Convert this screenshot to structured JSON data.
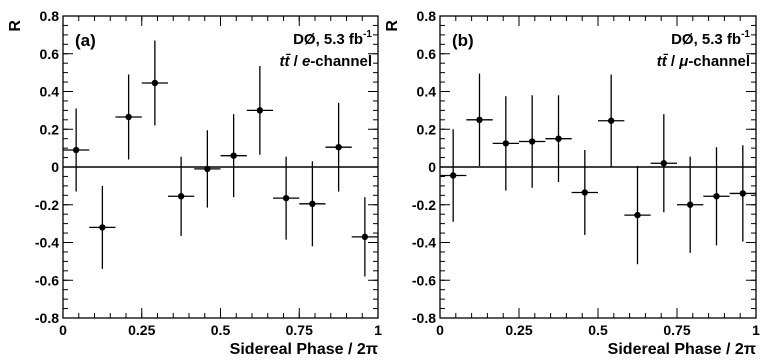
{
  "chart_data": [
    {
      "type": "scatter",
      "panel_label": "(a)",
      "annotation_line1": "DØ, 5.3 fb",
      "annotation_line1_sup": "-1",
      "annotation_process": "tt̄",
      "annotation_sep": " / ",
      "annotation_channel": "e",
      "annotation_channel_suffix": "-channel",
      "xlabel": "Sidereal Phase / 2π",
      "ylabel": "R",
      "xlim": [
        0,
        1
      ],
      "ylim": [
        -0.8,
        0.8
      ],
      "xticks": [
        "0",
        "0.25",
        "0.5",
        "0.75",
        "1"
      ],
      "yticks": [
        "-0.8",
        "-0.6",
        "-0.4",
        "-0.2",
        "0",
        "0.2",
        "0.4",
        "0.6",
        "0.8"
      ],
      "reference_line": 0,
      "x": [
        0.0417,
        0.125,
        0.2083,
        0.2917,
        0.375,
        0.4583,
        0.5417,
        0.625,
        0.7083,
        0.7917,
        0.875,
        0.9583
      ],
      "y": [
        0.09,
        -0.32,
        0.265,
        0.445,
        -0.155,
        -0.01,
        0.06,
        0.3,
        -0.165,
        -0.195,
        0.105,
        -0.37
      ],
      "y_err": [
        0.22,
        0.22,
        0.225,
        0.225,
        0.21,
        0.205,
        0.22,
        0.235,
        0.22,
        0.225,
        0.235,
        0.21
      ],
      "x_halfwidth": 0.0417
    },
    {
      "type": "scatter",
      "panel_label": "(b)",
      "annotation_line1": "DØ, 5.3 fb",
      "annotation_line1_sup": "-1",
      "annotation_process": "tt̄",
      "annotation_sep": " / ",
      "annotation_channel": "μ",
      "annotation_channel_suffix": "-channel",
      "xlabel": "Sidereal Phase / 2π",
      "ylabel": "R",
      "xlim": [
        0,
        1
      ],
      "ylim": [
        -0.8,
        0.8
      ],
      "xticks": [
        "0",
        "0.25",
        "0.5",
        "0.75",
        "1"
      ],
      "yticks": [
        "-0.8",
        "-0.6",
        "-0.4",
        "-0.2",
        "0",
        "0.2",
        "0.4",
        "0.6",
        "0.8"
      ],
      "reference_line": 0,
      "x": [
        0.0417,
        0.125,
        0.2083,
        0.2917,
        0.375,
        0.4583,
        0.5417,
        0.625,
        0.7083,
        0.7917,
        0.875,
        0.9583
      ],
      "y": [
        -0.045,
        0.25,
        0.125,
        0.135,
        0.15,
        -0.135,
        0.245,
        -0.255,
        0.02,
        -0.2,
        -0.155,
        -0.14
      ],
      "y_err": [
        0.245,
        0.245,
        0.25,
        0.245,
        0.23,
        0.225,
        0.245,
        0.26,
        0.26,
        0.255,
        0.26,
        0.255
      ],
      "x_halfwidth": 0.0417
    }
  ]
}
